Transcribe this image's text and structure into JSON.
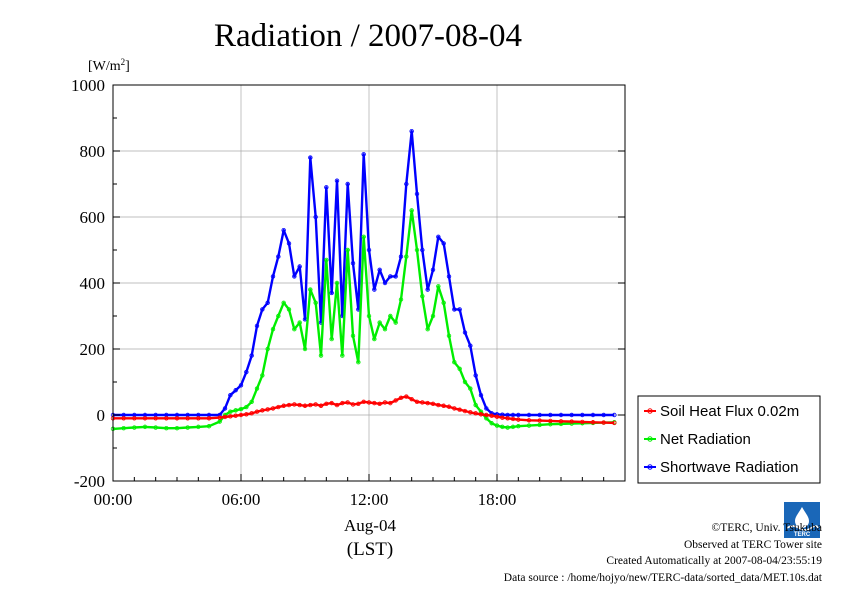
{
  "chart_data": {
    "type": "line",
    "title": "Radiation / 2007-08-04",
    "ylabel": "[W/m2]",
    "ylabel_main": "[W/m",
    "ylabel_sup": "2",
    "ylabel_end": "]",
    "xlabel_date": "Aug-04",
    "xlabel_unit": "(LST)",
    "x_unit": "hour",
    "xlim": [
      0,
      24
    ],
    "ylim": [
      -200,
      1000
    ],
    "grid": true,
    "legend_position": "right",
    "x_ticks": [
      0,
      6,
      12,
      18
    ],
    "x_tick_labels": [
      "00:00",
      "06:00",
      "12:00",
      "18:00"
    ],
    "y_ticks": [
      -200,
      0,
      200,
      400,
      600,
      800,
      1000
    ],
    "y_tick_labels": [
      "-200",
      "0",
      "200",
      "400",
      "600",
      "800",
      "1000"
    ],
    "x": [
      0,
      0.5,
      1,
      1.5,
      2,
      2.5,
      3,
      3.5,
      4,
      4.5,
      5,
      5.25,
      5.5,
      5.75,
      6,
      6.25,
      6.5,
      6.75,
      7,
      7.25,
      7.5,
      7.75,
      8,
      8.25,
      8.5,
      8.75,
      9,
      9.25,
      9.5,
      9.75,
      10,
      10.25,
      10.5,
      10.75,
      11,
      11.25,
      11.5,
      11.75,
      12,
      12.25,
      12.5,
      12.75,
      13,
      13.25,
      13.5,
      13.75,
      14,
      14.25,
      14.5,
      14.75,
      15,
      15.25,
      15.5,
      15.75,
      16,
      16.25,
      16.5,
      16.75,
      17,
      17.25,
      17.5,
      17.75,
      18,
      18.25,
      18.5,
      18.75,
      19,
      19.5,
      20,
      20.5,
      21,
      21.5,
      22,
      22.5,
      23,
      23.5
    ],
    "series": [
      {
        "name": "Soil Heat Flux 0.02m",
        "color": "#ff0000",
        "values": [
          -10,
          -10,
          -10,
          -10,
          -10,
          -10,
          -10,
          -10,
          -10,
          -10,
          -8,
          -6,
          -4,
          -2,
          0,
          2,
          5,
          10,
          14,
          17,
          20,
          24,
          28,
          30,
          32,
          30,
          28,
          30,
          32,
          28,
          34,
          36,
          30,
          36,
          38,
          32,
          34,
          40,
          38,
          36,
          34,
          38,
          36,
          44,
          52,
          56,
          48,
          40,
          38,
          36,
          34,
          30,
          28,
          25,
          20,
          16,
          12,
          8,
          5,
          2,
          0,
          -2,
          -5,
          -8,
          -10,
          -12,
          -14,
          -16,
          -17,
          -18,
          -19,
          -20,
          -21,
          -22,
          -23,
          -24
        ]
      },
      {
        "name": "Net Radiation",
        "color": "#00ee00",
        "values": [
          -42,
          -40,
          -38,
          -36,
          -38,
          -40,
          -40,
          -38,
          -36,
          -34,
          -20,
          0,
          10,
          14,
          18,
          24,
          40,
          80,
          120,
          200,
          260,
          300,
          340,
          320,
          260,
          280,
          200,
          380,
          340,
          180,
          470,
          230,
          400,
          180,
          500,
          240,
          160,
          540,
          300,
          230,
          280,
          260,
          300,
          280,
          350,
          480,
          620,
          500,
          360,
          260,
          300,
          390,
          340,
          240,
          160,
          140,
          100,
          80,
          30,
          10,
          -10,
          -25,
          -32,
          -36,
          -38,
          -36,
          -34,
          -32,
          -30,
          -28,
          -27,
          -26,
          -25,
          -24,
          -23,
          -22
        ]
      },
      {
        "name": "Shortwave Radiation",
        "color": "#0000ff",
        "values": [
          0,
          0,
          0,
          0,
          0,
          0,
          0,
          0,
          0,
          0,
          0,
          20,
          60,
          75,
          90,
          130,
          180,
          270,
          320,
          340,
          420,
          480,
          560,
          520,
          420,
          450,
          290,
          780,
          600,
          280,
          690,
          370,
          710,
          300,
          700,
          460,
          320,
          790,
          500,
          380,
          440,
          400,
          420,
          420,
          480,
          700,
          860,
          670,
          500,
          380,
          440,
          540,
          520,
          420,
          320,
          320,
          250,
          210,
          120,
          60,
          20,
          5,
          2,
          1,
          0,
          0,
          0,
          0,
          0,
          0,
          0,
          0,
          0,
          0,
          0,
          0
        ]
      }
    ],
    "legend": [
      "Soil Heat Flux 0.02m",
      "Net Radiation",
      "Shortwave Radiation"
    ]
  },
  "footer": {
    "copyright": "©TERC, Univ. Tsukuba",
    "observed": "Observed at TERC Tower site",
    "created": "Created Automatically at 2007-08-04/23:55:19",
    "source": "Data source : /home/hojyo/new/TERC-data/sorted_data/MET.10s.dat"
  },
  "logo_text": "TERC"
}
